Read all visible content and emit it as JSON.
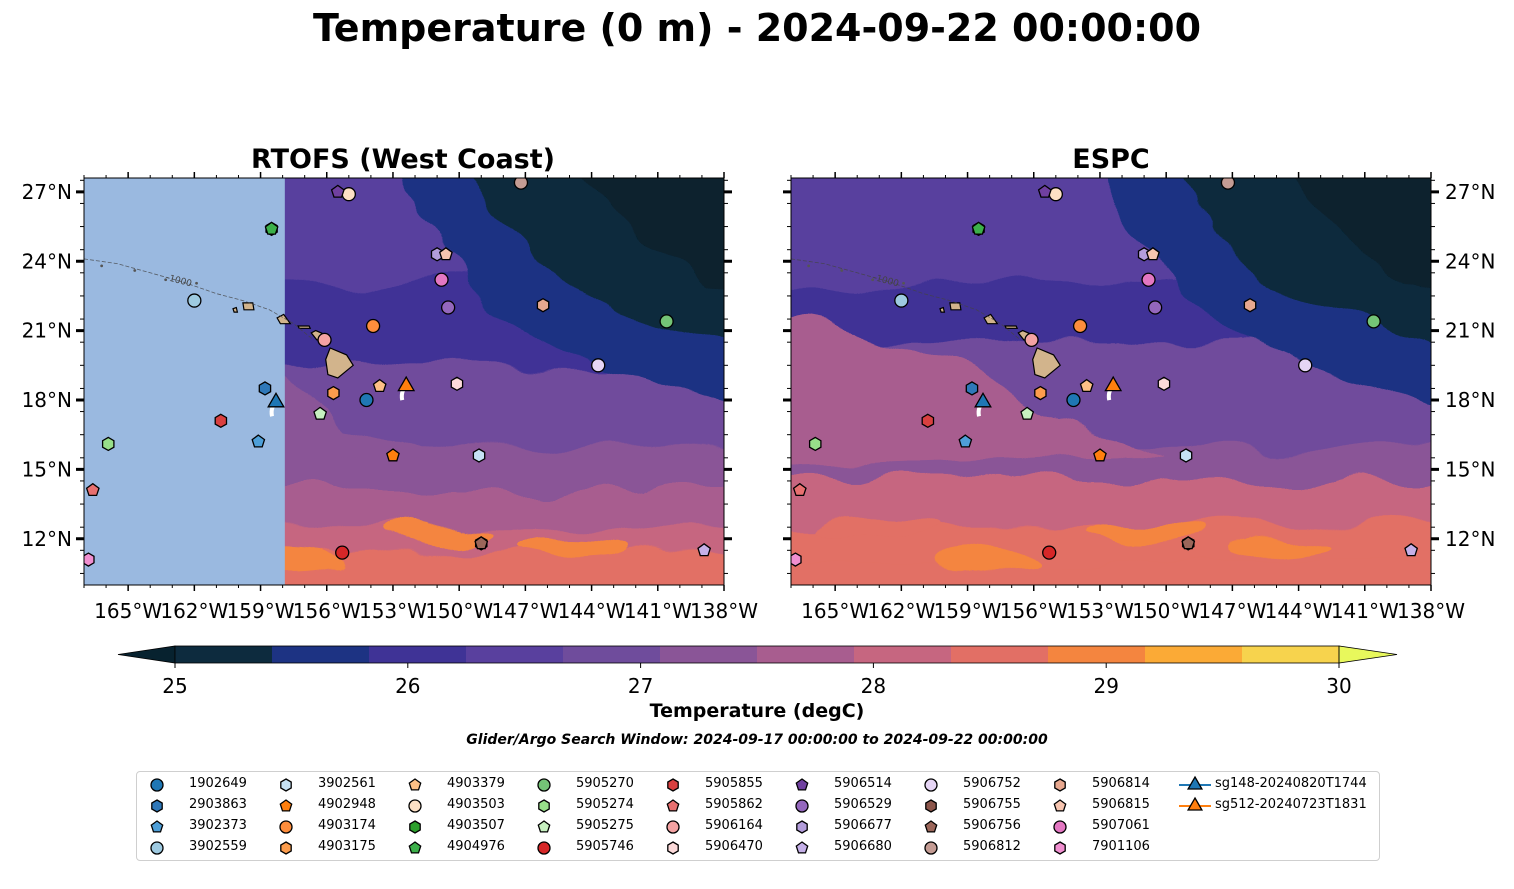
{
  "title": "Temperature (0 m) - 2024-09-22 00:00:00",
  "panels": [
    {
      "title": "RTOFS (West Coast)",
      "key": "rtofs"
    },
    {
      "title": "ESPC",
      "key": "espc"
    }
  ],
  "map": {
    "lon_range": [
      -167,
      -138
    ],
    "lat_range": [
      10,
      27.6
    ],
    "lon_ticks": [
      "165°W",
      "162°W",
      "159°W",
      "156°W",
      "153°W",
      "150°W",
      "147°W",
      "144°W",
      "141°W",
      "138°W"
    ],
    "lat_ticks": [
      "12°N",
      "15°N",
      "18°N",
      "21°N",
      "24°N",
      "27°N"
    ],
    "rtofs_domain_west_edge_lon": -157.9,
    "land_color": "#d2b48c",
    "no_data_color": "#9ab9e0",
    "contour_labels": [
      "-1000"
    ]
  },
  "colorbar": {
    "label": "Temperature (degC)",
    "min": 25,
    "max": 30,
    "step": 0.5,
    "ticks": [
      "25",
      "26",
      "27",
      "28",
      "29",
      "30"
    ],
    "colors": [
      "#0d2b3e",
      "#1d3383",
      "#3f3396",
      "#59409e",
      "#6f4c9c",
      "#8a5597",
      "#a85d8f",
      "#c66680",
      "#e26f65",
      "#f4853f",
      "#fbaa36",
      "#f7d34d"
    ],
    "under_color": "#07222f",
    "over_color": "#e8f85c"
  },
  "search_window": "Glider/Argo Search Window: 2024-09-17 00:00:00 to 2024-09-22 00:00:00",
  "platforms": [
    {
      "id": "1902649",
      "marker": "circle",
      "color": "#1f77b4",
      "lon": -154.2,
      "lat": 18.0
    },
    {
      "id": "2903863",
      "marker": "hexagon",
      "color": "#2f78b9",
      "lon": -158.8,
      "lat": 18.5
    },
    {
      "id": "3902373",
      "marker": "pentagon",
      "color": "#4e9fd8",
      "lon": -159.1,
      "lat": 16.2
    },
    {
      "id": "3902559",
      "marker": "circle",
      "color": "#9ecae1",
      "lon": -162.0,
      "lat": 22.3
    },
    {
      "id": "3902561",
      "marker": "hexagon",
      "color": "#c6e2f5",
      "lon": -149.1,
      "lat": 15.6
    },
    {
      "id": "4902948",
      "marker": "pentagon",
      "color": "#ff7f0e",
      "lon": -153.0,
      "lat": 15.6
    },
    {
      "id": "4903174",
      "marker": "circle",
      "color": "#fd8d3c",
      "lon": -153.9,
      "lat": 21.2
    },
    {
      "id": "4903175",
      "marker": "hexagon",
      "color": "#fd9d4d",
      "lon": -155.7,
      "lat": 18.3
    },
    {
      "id": "4903379",
      "marker": "pentagon",
      "color": "#fdc086",
      "lon": -153.6,
      "lat": 18.6
    },
    {
      "id": "4903503",
      "marker": "circle",
      "color": "#fde0c5",
      "lon": -155.0,
      "lat": 26.9
    },
    {
      "id": "4903507",
      "marker": "hexagon",
      "color": "#2ca02c",
      "lon": -158.5,
      "lat": 25.4
    },
    {
      "id": "4904976",
      "marker": "pentagon",
      "color": "#3cb04a",
      "lon": -158.5,
      "lat": 25.4
    },
    {
      "id": "5905270",
      "marker": "circle",
      "color": "#74c476",
      "lon": -140.6,
      "lat": 21.4
    },
    {
      "id": "5905274",
      "marker": "hexagon",
      "color": "#98df8a",
      "lon": -165.9,
      "lat": 16.1
    },
    {
      "id": "5905275",
      "marker": "pentagon",
      "color": "#c7f0c0",
      "lon": -156.3,
      "lat": 17.4
    },
    {
      "id": "5905746",
      "marker": "circle",
      "color": "#d62728",
      "lon": -155.3,
      "lat": 11.4
    },
    {
      "id": "5905855",
      "marker": "hexagon",
      "color": "#d94040",
      "lon": -160.8,
      "lat": 17.1
    },
    {
      "id": "5905862",
      "marker": "pentagon",
      "color": "#e87070",
      "lon": -166.6,
      "lat": 14.1
    },
    {
      "id": "5906164",
      "marker": "circle",
      "color": "#f4a3a3",
      "lon": -156.1,
      "lat": 20.6
    },
    {
      "id": "5906470",
      "marker": "hexagon",
      "color": "#fcdada",
      "lon": -150.1,
      "lat": 18.7
    },
    {
      "id": "5906514",
      "marker": "pentagon",
      "color": "#7040a0",
      "lon": -155.5,
      "lat": 27.0
    },
    {
      "id": "5906529",
      "marker": "circle",
      "color": "#9467bd",
      "lon": -150.5,
      "lat": 22.0
    },
    {
      "id": "5906677",
      "marker": "hexagon",
      "color": "#b39ddb",
      "lon": -151.0,
      "lat": 24.3
    },
    {
      "id": "5906680",
      "marker": "pentagon",
      "color": "#c5b0e8",
      "lon": -138.9,
      "lat": 11.5
    },
    {
      "id": "5906752",
      "marker": "circle",
      "color": "#e6d5f5",
      "lon": -143.7,
      "lat": 19.5
    },
    {
      "id": "5906755",
      "marker": "hexagon",
      "color": "#8c564b",
      "lon": -149.0,
      "lat": 11.8
    },
    {
      "id": "5906756",
      "marker": "pentagon",
      "color": "#9b665a",
      "lon": -149.0,
      "lat": 11.8
    },
    {
      "id": "5906812",
      "marker": "circle",
      "color": "#c49c94",
      "lon": -147.2,
      "lat": 27.4
    },
    {
      "id": "5906814",
      "marker": "hexagon",
      "color": "#e8a88f",
      "lon": -146.2,
      "lat": 22.1
    },
    {
      "id": "5906815",
      "marker": "pentagon",
      "color": "#f7c5b0",
      "lon": -150.6,
      "lat": 24.3
    },
    {
      "id": "5907061",
      "marker": "circle",
      "color": "#e377c2",
      "lon": -150.8,
      "lat": 23.2
    },
    {
      "id": "7901106",
      "marker": "hexagon",
      "color": "#f08fd0",
      "lon": -166.8,
      "lat": 11.1
    }
  ],
  "gliders": [
    {
      "id": "sg148-20240820T1744",
      "color": "#1f77b4",
      "lon": -158.3,
      "lat": 17.9
    },
    {
      "id": "sg512-20240723T1831",
      "color": "#ff7f0e",
      "lon": -152.4,
      "lat": 18.6
    }
  ]
}
